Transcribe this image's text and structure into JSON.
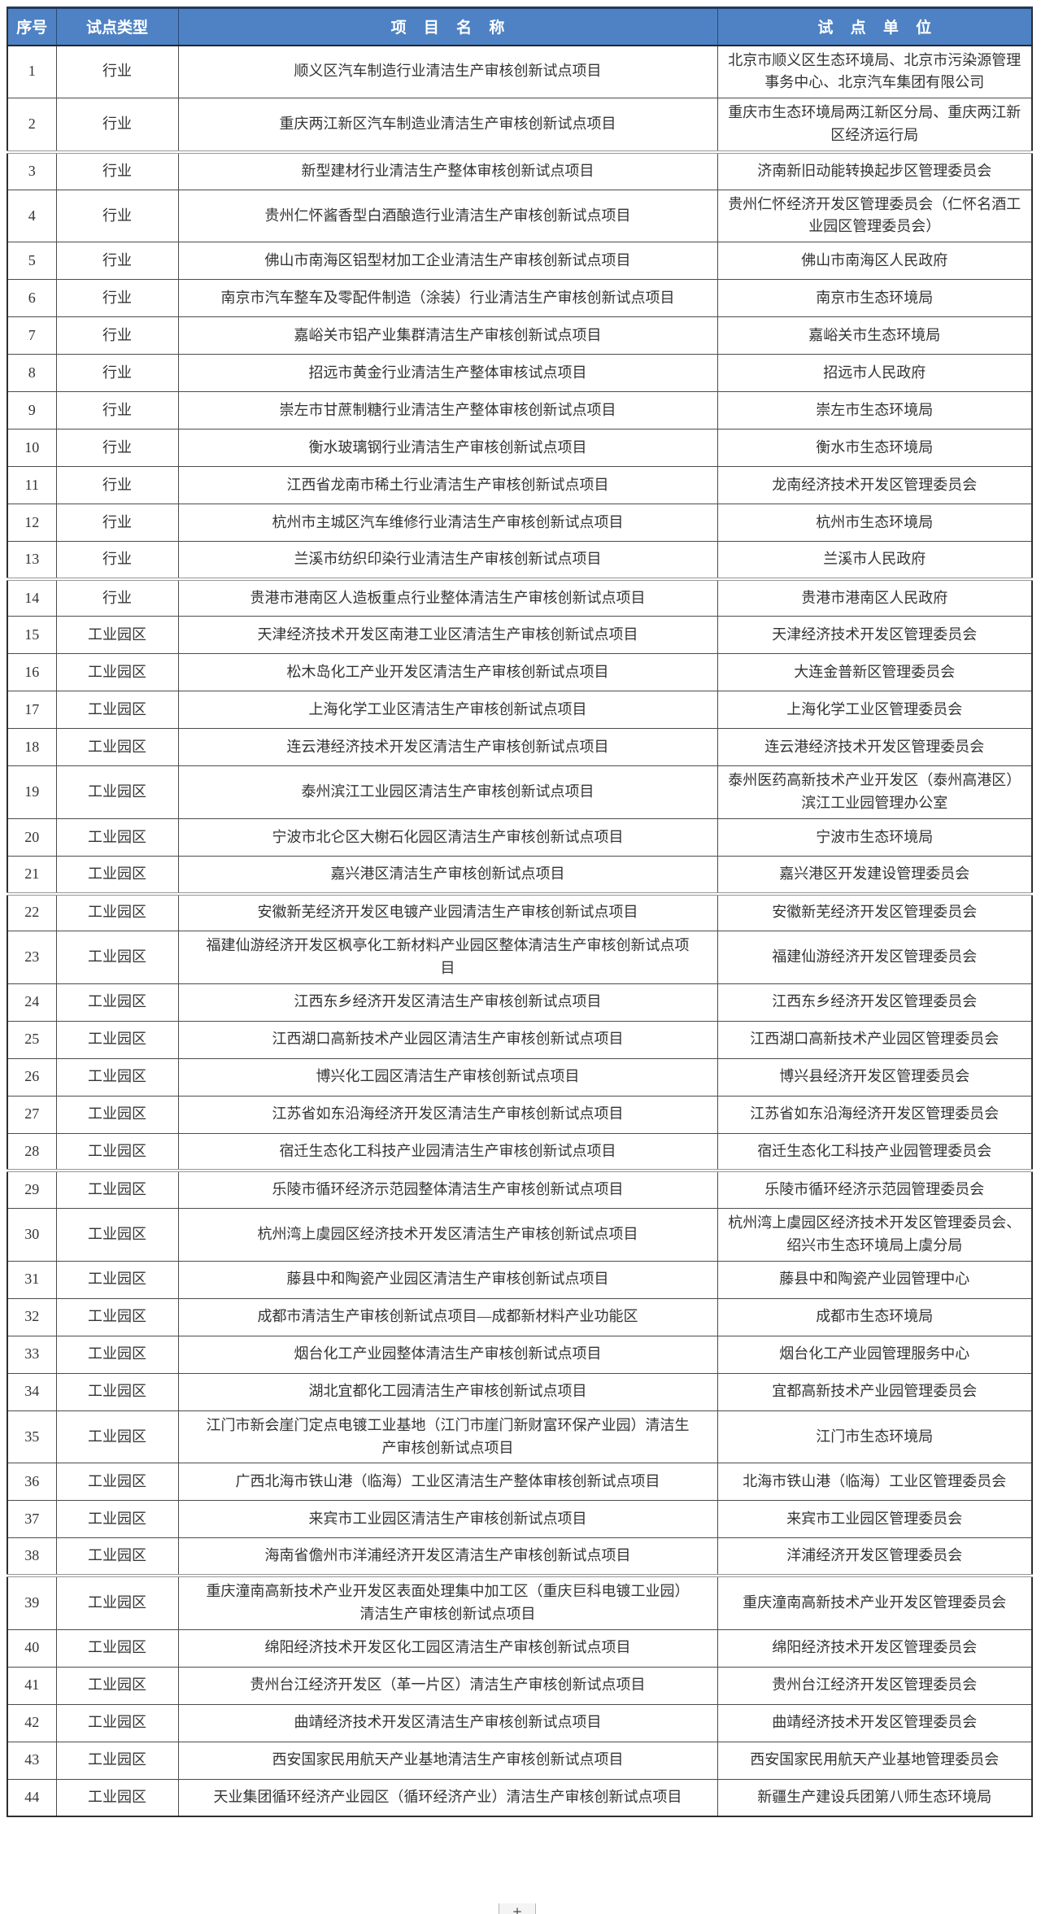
{
  "table": {
    "headers": {
      "no": "序号",
      "type": "试点类型",
      "name": "项 目 名 称",
      "unit": "试 点 单 位"
    },
    "rows": [
      {
        "no": "1",
        "type": "行业",
        "name": "顺义区汽车制造行业清洁生产审核创新试点项目",
        "unit": "北京市顺义区生态环境局、北京市污染源管理事务中心、北京汽车集团有限公司"
      },
      {
        "no": "2",
        "type": "行业",
        "name": "重庆两江新区汽车制造业清洁生产审核创新试点项目",
        "unit": "重庆市生态环境局两江新区分局、重庆两江新区经济运行局"
      },
      {
        "no": "3",
        "type": "行业",
        "name": "新型建材行业清洁生产整体审核创新试点项目",
        "unit": "济南新旧动能转换起步区管理委员会"
      },
      {
        "no": "4",
        "type": "行业",
        "name": "贵州仁怀酱香型白酒酿造行业清洁生产审核创新试点项目",
        "unit": "贵州仁怀经济开发区管理委员会（仁怀名酒工业园区管理委员会）"
      },
      {
        "no": "5",
        "type": "行业",
        "name": "佛山市南海区铝型材加工企业清洁生产审核创新试点项目",
        "unit": "佛山市南海区人民政府"
      },
      {
        "no": "6",
        "type": "行业",
        "name": "南京市汽车整车及零配件制造（涂装）行业清洁生产审核创新试点项目",
        "unit": "南京市生态环境局"
      },
      {
        "no": "7",
        "type": "行业",
        "name": "嘉峪关市铝产业集群清洁生产审核创新试点项目",
        "unit": "嘉峪关市生态环境局"
      },
      {
        "no": "8",
        "type": "行业",
        "name": "招远市黄金行业清洁生产整体审核试点项目",
        "unit": "招远市人民政府"
      },
      {
        "no": "9",
        "type": "行业",
        "name": "崇左市甘蔗制糖行业清洁生产整体审核创新试点项目",
        "unit": "崇左市生态环境局"
      },
      {
        "no": "10",
        "type": "行业",
        "name": "衡水玻璃钢行业清洁生产审核创新试点项目",
        "unit": "衡水市生态环境局"
      },
      {
        "no": "11",
        "type": "行业",
        "name": "江西省龙南市稀土行业清洁生产审核创新试点项目",
        "unit": "龙南经济技术开发区管理委员会"
      },
      {
        "no": "12",
        "type": "行业",
        "name": "杭州市主城区汽车维修行业清洁生产审核创新试点项目",
        "unit": "杭州市生态环境局"
      },
      {
        "no": "13",
        "type": "行业",
        "name": "兰溪市纺织印染行业清洁生产审核创新试点项目",
        "unit": "兰溪市人民政府"
      },
      {
        "no": "14",
        "type": "行业",
        "name": "贵港市港南区人造板重点行业整体清洁生产审核创新试点项目",
        "unit": "贵港市港南区人民政府"
      },
      {
        "no": "15",
        "type": "工业园区",
        "name": "天津经济技术开发区南港工业区清洁生产审核创新试点项目",
        "unit": "天津经济技术开发区管理委员会"
      },
      {
        "no": "16",
        "type": "工业园区",
        "name": "松木岛化工产业开发区清洁生产审核创新试点项目",
        "unit": "大连金普新区管理委员会"
      },
      {
        "no": "17",
        "type": "工业园区",
        "name": "上海化学工业区清洁生产审核创新试点项目",
        "unit": "上海化学工业区管理委员会"
      },
      {
        "no": "18",
        "type": "工业园区",
        "name": "连云港经济技术开发区清洁生产审核创新试点项目",
        "unit": "连云港经济技术开发区管理委员会"
      },
      {
        "no": "19",
        "type": "工业园区",
        "name": "泰州滨江工业园区清洁生产审核创新试点项目",
        "unit": "泰州医药高新技术产业开发区（泰州高港区）滨江工业园管理办公室"
      },
      {
        "no": "20",
        "type": "工业园区",
        "name": "宁波市北仑区大榭石化园区清洁生产审核创新试点项目",
        "unit": "宁波市生态环境局"
      },
      {
        "no": "21",
        "type": "工业园区",
        "name": "嘉兴港区清洁生产审核创新试点项目",
        "unit": "嘉兴港区开发建设管理委员会"
      },
      {
        "no": "22",
        "type": "工业园区",
        "name": "安徽新芜经济开发区电镀产业园清洁生产审核创新试点项目",
        "unit": "安徽新芜经济开发区管理委员会"
      },
      {
        "no": "23",
        "type": "工业园区",
        "name": "福建仙游经济开发区枫亭化工新材料产业园区整体清洁生产审核创新试点项目",
        "unit": "福建仙游经济开发区管理委员会"
      },
      {
        "no": "24",
        "type": "工业园区",
        "name": "江西东乡经济开发区清洁生产审核创新试点项目",
        "unit": "江西东乡经济开发区管理委员会"
      },
      {
        "no": "25",
        "type": "工业园区",
        "name": "江西湖口高新技术产业园区清洁生产审核创新试点项目",
        "unit": "江西湖口高新技术产业园区管理委员会"
      },
      {
        "no": "26",
        "type": "工业园区",
        "name": "博兴化工园区清洁生产审核创新试点项目",
        "unit": "博兴县经济开发区管理委员会"
      },
      {
        "no": "27",
        "type": "工业园区",
        "name": "江苏省如东沿海经济开发区清洁生产审核创新试点项目",
        "unit": "江苏省如东沿海经济开发区管理委员会"
      },
      {
        "no": "28",
        "type": "工业园区",
        "name": "宿迁生态化工科技产业园清洁生产审核创新试点项目",
        "unit": "宿迁生态化工科技产业园管理委员会"
      },
      {
        "no": "29",
        "type": "工业园区",
        "name": "乐陵市循环经济示范园整体清洁生产审核创新试点项目",
        "unit": "乐陵市循环经济示范园管理委员会"
      },
      {
        "no": "30",
        "type": "工业园区",
        "name": "杭州湾上虞园区经济技术开发区清洁生产审核创新试点项目",
        "unit": "杭州湾上虞园区经济技术开发区管理委员会、绍兴市生态环境局上虞分局"
      },
      {
        "no": "31",
        "type": "工业园区",
        "name": "藤县中和陶瓷产业园区清洁生产审核创新试点项目",
        "unit": "藤县中和陶瓷产业园管理中心"
      },
      {
        "no": "32",
        "type": "工业园区",
        "name": "成都市清洁生产审核创新试点项目—成都新材料产业功能区",
        "unit": "成都市生态环境局"
      },
      {
        "no": "33",
        "type": "工业园区",
        "name": "烟台化工产业园整体清洁生产审核创新试点项目",
        "unit": "烟台化工产业园管理服务中心"
      },
      {
        "no": "34",
        "type": "工业园区",
        "name": "湖北宜都化工园清洁生产审核创新试点项目",
        "unit": "宜都高新技术产业园管理委员会"
      },
      {
        "no": "35",
        "type": "工业园区",
        "name": "江门市新会崖门定点电镀工业基地（江门市崖门新财富环保产业园）清洁生产审核创新试点项目",
        "unit": "江门市生态环境局"
      },
      {
        "no": "36",
        "type": "工业园区",
        "name": "广西北海市铁山港（临海）工业区清洁生产整体审核创新试点项目",
        "unit": "北海市铁山港（临海）工业区管理委员会"
      },
      {
        "no": "37",
        "type": "工业园区",
        "name": "来宾市工业园区清洁生产审核创新试点项目",
        "unit": "来宾市工业园区管理委员会"
      },
      {
        "no": "38",
        "type": "工业园区",
        "name": "海南省儋州市洋浦经济开发区清洁生产审核创新试点项目",
        "unit": "洋浦经济开发区管理委员会"
      },
      {
        "no": "39",
        "type": "工业园区",
        "name": "重庆潼南高新技术产业开发区表面处理集中加工区（重庆巨科电镀工业园）清洁生产审核创新试点项目",
        "unit": "重庆潼南高新技术产业开发区管理委员会"
      },
      {
        "no": "40",
        "type": "工业园区",
        "name": "绵阳经济技术开发区化工园区清洁生产审核创新试点项目",
        "unit": "绵阳经济技术开发区管理委员会"
      },
      {
        "no": "41",
        "type": "工业园区",
        "name": "贵州台江经济开发区（革一片区）清洁生产审核创新试点项目",
        "unit": "贵州台江经济开发区管理委员会"
      },
      {
        "no": "42",
        "type": "工业园区",
        "name": "曲靖经济技术开发区清洁生产审核创新试点项目",
        "unit": "曲靖经济技术开发区管理委员会"
      },
      {
        "no": "43",
        "type": "工业园区",
        "name": "西安国家民用航天产业基地清洁生产审核创新试点项目",
        "unit": "西安国家民用航天产业基地管理委员会"
      },
      {
        "no": "44",
        "type": "工业园区",
        "name": "天业集团循环经济产业园区（循环经济产业）清洁生产审核创新试点项目",
        "unit": "新疆生产建设兵团第八师生态环境局"
      }
    ]
  },
  "colors": {
    "header_bg": "#4e82c4",
    "header_text": "#ffffff",
    "body_text": "#333333",
    "border": "#4c4c4c",
    "outer_top_border": "#203a5e"
  },
  "misc": {
    "plus_glyph": "+"
  }
}
